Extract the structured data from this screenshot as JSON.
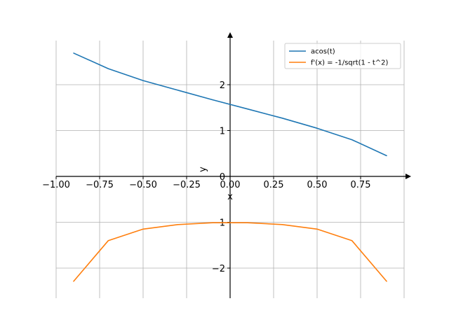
{
  "chart_data": {
    "type": "line",
    "title": "",
    "xlabel": "x",
    "ylabel": "y",
    "xlim": [
      -1.0,
      1.05
    ],
    "ylim": [
      -2.7,
      3.0
    ],
    "x_ticks": [
      -1.0,
      -0.75,
      -0.5,
      -0.25,
      0.0,
      0.25,
      0.5,
      0.75
    ],
    "x_tick_labels": [
      "−1.00",
      "−0.75",
      "−0.50",
      "−0.25",
      "0.00",
      "0.25",
      "0.50",
      "0.75"
    ],
    "y_ticks": [
      -2,
      -1,
      0,
      1,
      2
    ],
    "y_tick_labels": [
      "−2",
      "−1",
      "0",
      "1",
      "2"
    ],
    "x_gridlines": [
      -1.0,
      -0.75,
      -0.5,
      -0.25,
      0.0,
      0.25,
      0.5,
      0.75,
      1.0
    ],
    "y_gridlines": [
      -2,
      -1,
      0,
      1,
      2
    ],
    "grid": true,
    "legend_position": "top-right",
    "series": [
      {
        "name": "acos(t)",
        "color": "#1f77b4",
        "x": [
          -0.9,
          -0.7,
          -0.5,
          -0.3,
          -0.1,
          0.1,
          0.3,
          0.5,
          0.7,
          0.9
        ],
        "y": [
          2.69,
          2.35,
          2.09,
          1.88,
          1.67,
          1.47,
          1.27,
          1.05,
          0.8,
          0.45
        ]
      },
      {
        "name": "f'(x) = -1/sqrt(1 - t^2)",
        "color": "#ff7f0e",
        "x": [
          -0.9,
          -0.7,
          -0.5,
          -0.3,
          -0.1,
          0.1,
          0.3,
          0.5,
          0.7,
          0.9
        ],
        "y": [
          -2.29,
          -1.4,
          -1.15,
          -1.05,
          -1.01,
          -1.01,
          -1.05,
          -1.15,
          -1.4,
          -2.29
        ]
      }
    ]
  }
}
